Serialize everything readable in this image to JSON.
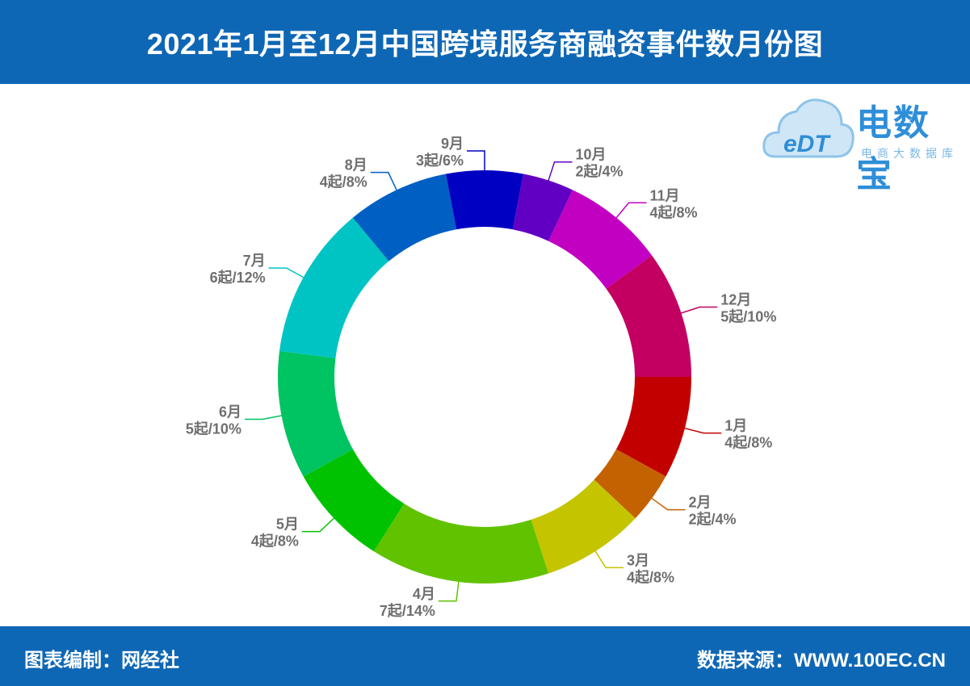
{
  "header": {
    "title": "2021年1月至12月中国跨境服务商融资事件数月份图"
  },
  "footer": {
    "left": "图表编制：网经社",
    "right": "数据来源：WWW.100EC.CN"
  },
  "logo": {
    "text": "电数宝",
    "subtitle": "电商大数据库",
    "mark": "eDT"
  },
  "chart_data": {
    "type": "pie",
    "variant": "donut",
    "title": "2021年1月至12月中国跨境服务商融资事件数月份图",
    "unit": "起",
    "categories": [
      "1月",
      "2月",
      "3月",
      "4月",
      "5月",
      "6月",
      "7月",
      "8月",
      "9月",
      "10月",
      "11月",
      "12月"
    ],
    "values": [
      4,
      2,
      4,
      7,
      4,
      5,
      6,
      4,
      3,
      2,
      4,
      5
    ],
    "value_labels": [
      "4起/8%",
      "2起/4%",
      "4起/8%",
      "7起/14%",
      "4起/8%",
      "5起/10%",
      "6起/12%",
      "4起/8%",
      "3起/6%",
      "2起/4%",
      "4起/8%",
      "5起/10%"
    ],
    "colors": [
      "#c30000",
      "#c46100",
      "#c4c400",
      "#61c200",
      "#00c200",
      "#00c361",
      "#00c4c4",
      "#005fc3",
      "#0000c2",
      "#6100c2",
      "#c200c2",
      "#c30061"
    ],
    "start": "3 o'clock, clockwise"
  }
}
